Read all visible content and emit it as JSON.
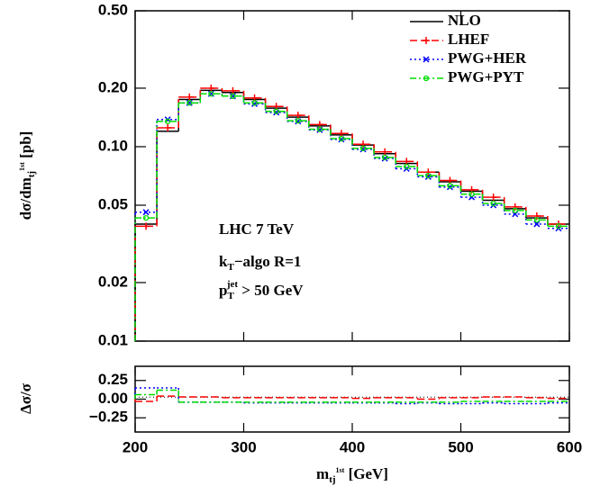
{
  "chart_data": [
    {
      "type": "histogram",
      "log_y": true,
      "ylabel": [
        "dσ/dm",
        "tj",
        "1st",
        " [pb]"
      ],
      "annotations": [
        [
          "LHC 7 TeV"
        ],
        [
          "k",
          "T",
          "−algo R=1"
        ],
        [
          "p",
          "T",
          "jet",
          " > 50 GeV"
        ]
      ],
      "legend": "upper right",
      "bins": [
        200,
        220,
        240,
        260,
        280,
        300,
        320,
        340,
        360,
        380,
        400,
        420,
        440,
        460,
        480,
        500,
        520,
        540,
        560,
        580,
        600
      ],
      "xlim": [
        200,
        600
      ],
      "ylim": [
        0.01,
        0.5
      ],
      "yticks": [
        {
          "value": 0.5,
          "label": "0.50"
        },
        {
          "value": 0.2,
          "label": "0.20"
        },
        {
          "value": 0.1,
          "label": "0.10"
        },
        0.05,
        0.02,
        0.01
      ],
      "series": [
        {
          "name": "NLO",
          "color": "#000000",
          "values": [
            0.04,
            0.12,
            0.175,
            0.195,
            0.19,
            0.175,
            0.158,
            0.142,
            0.128,
            0.115,
            0.102,
            0.092,
            0.082,
            0.074,
            0.066,
            0.059,
            0.053,
            0.048,
            0.043,
            0.04
          ]
        },
        {
          "name": "LHEF",
          "color": "#ff0000",
          "values": [
            0.039,
            0.125,
            0.18,
            0.2,
            0.194,
            0.178,
            0.161,
            0.145,
            0.13,
            0.117,
            0.103,
            0.094,
            0.084,
            0.074,
            0.067,
            0.06,
            0.055,
            0.049,
            0.044,
            0.04
          ]
        },
        {
          "name": "PWG+HER",
          "color": "#0000ff",
          "values": [
            0.046,
            0.138,
            0.168,
            0.187,
            0.182,
            0.166,
            0.15,
            0.135,
            0.122,
            0.109,
            0.097,
            0.087,
            0.077,
            0.07,
            0.062,
            0.055,
            0.05,
            0.045,
            0.04,
            0.038
          ]
        },
        {
          "name": "PWG+PYT",
          "color": "#00dd00",
          "values": [
            0.043,
            0.135,
            0.168,
            0.187,
            0.182,
            0.168,
            0.152,
            0.136,
            0.123,
            0.11,
            0.098,
            0.088,
            0.079,
            0.071,
            0.063,
            0.057,
            0.051,
            0.047,
            0.042,
            0.039
          ]
        }
      ]
    },
    {
      "type": "histogram",
      "ylabel": "Δσ/σ",
      "xlabel": [
        "m",
        "tj",
        "1st",
        " [GeV]"
      ],
      "bins": [
        200,
        220,
        240,
        260,
        280,
        300,
        320,
        340,
        360,
        380,
        400,
        420,
        440,
        460,
        480,
        500,
        520,
        540,
        560,
        580,
        600
      ],
      "xlim": [
        200,
        600
      ],
      "xticks": [
        200,
        300,
        400,
        500,
        600
      ],
      "ylim": [
        -0.44,
        0.44
      ],
      "yticks": [
        0.25,
        {
          "value": 0,
          "label": "0.00"
        },
        {
          "value": -0.25,
          "label": "−0.25"
        }
      ],
      "series": [
        {
          "name": "LHEF",
          "color": "#ff0000",
          "values": [
            -0.03,
            0.04,
            0.03,
            0.03,
            0.02,
            0.02,
            0.02,
            0.02,
            0.02,
            0.02,
            0.01,
            0.02,
            0.02,
            0.0,
            0.02,
            0.02,
            0.03,
            0.03,
            0.02,
            0.01
          ]
        },
        {
          "name": "PWG+HER",
          "color": "#0000ff",
          "values": [
            0.15,
            0.15,
            -0.04,
            -0.04,
            -0.04,
            -0.05,
            -0.05,
            -0.05,
            -0.05,
            -0.05,
            -0.05,
            -0.05,
            -0.06,
            -0.05,
            -0.06,
            -0.06,
            -0.05,
            -0.06,
            -0.06,
            -0.05
          ]
        },
        {
          "name": "PWG+PYT",
          "color": "#00dd00",
          "values": [
            0.06,
            0.12,
            -0.04,
            -0.04,
            -0.04,
            -0.04,
            -0.04,
            -0.04,
            -0.04,
            -0.04,
            -0.04,
            -0.04,
            -0.04,
            -0.04,
            -0.04,
            -0.03,
            -0.03,
            -0.03,
            -0.03,
            -0.03
          ]
        }
      ]
    }
  ]
}
